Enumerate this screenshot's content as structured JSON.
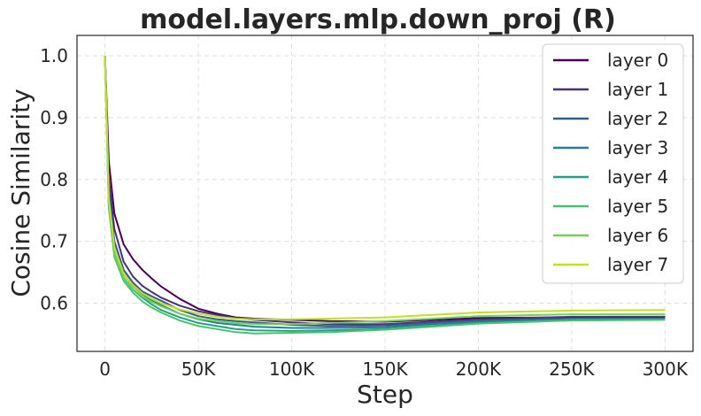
{
  "chart_data": {
    "type": "line",
    "title": "model.layers.mlp.down_proj (R)",
    "xlabel": "Step",
    "ylabel": "Cosine Similarity",
    "xlim": [
      -15000,
      315000
    ],
    "ylim": [
      0.522,
      1.033
    ],
    "xticks": [
      0,
      50000,
      100000,
      150000,
      200000,
      250000,
      300000
    ],
    "xtick_labels": [
      "0",
      "50K",
      "100K",
      "150K",
      "200K",
      "250K",
      "300K"
    ],
    "yticks": [
      0.6,
      0.7,
      0.8,
      0.9,
      1.0
    ],
    "ytick_labels": [
      "0.6",
      "0.7",
      "0.8",
      "0.9",
      "1.0"
    ],
    "grid": true,
    "legend_position": "top-right",
    "x": [
      0,
      2000,
      5000,
      10000,
      15000,
      20000,
      25000,
      30000,
      40000,
      50000,
      60000,
      70000,
      80000,
      100000,
      120000,
      150000,
      175000,
      200000,
      250000,
      300000
    ],
    "series": [
      {
        "name": "layer 0",
        "color": "#440154",
        "values": [
          1.0,
          0.83,
          0.745,
          0.695,
          0.671,
          0.654,
          0.64,
          0.627,
          0.607,
          0.591,
          0.583,
          0.577,
          0.575,
          0.573,
          0.571,
          0.57,
          0.573,
          0.576,
          0.577,
          0.577
        ]
      },
      {
        "name": "layer 1",
        "color": "#46327e",
        "values": [
          1.0,
          0.8,
          0.72,
          0.667,
          0.643,
          0.628,
          0.618,
          0.609,
          0.596,
          0.587,
          0.581,
          0.576,
          0.573,
          0.569,
          0.566,
          0.566,
          0.57,
          0.574,
          0.578,
          0.578
        ]
      },
      {
        "name": "layer 2",
        "color": "#365c8d",
        "values": [
          1.0,
          0.78,
          0.7,
          0.654,
          0.633,
          0.619,
          0.611,
          0.604,
          0.589,
          0.579,
          0.574,
          0.571,
          0.569,
          0.565,
          0.563,
          0.564,
          0.568,
          0.572,
          0.575,
          0.575
        ]
      },
      {
        "name": "layer 3",
        "color": "#277f8e",
        "values": [
          1.0,
          0.77,
          0.69,
          0.648,
          0.628,
          0.615,
          0.605,
          0.597,
          0.583,
          0.574,
          0.568,
          0.565,
          0.562,
          0.56,
          0.56,
          0.561,
          0.566,
          0.57,
          0.574,
          0.574
        ]
      },
      {
        "name": "layer 4",
        "color": "#1fa187",
        "values": [
          1.0,
          0.76,
          0.68,
          0.641,
          0.622,
          0.609,
          0.598,
          0.589,
          0.577,
          0.568,
          0.563,
          0.558,
          0.556,
          0.555,
          0.556,
          0.558,
          0.563,
          0.568,
          0.573,
          0.574
        ]
      },
      {
        "name": "layer 5",
        "color": "#4ac16d",
        "values": [
          1.0,
          0.755,
          0.675,
          0.636,
          0.617,
          0.603,
          0.593,
          0.585,
          0.572,
          0.563,
          0.558,
          0.553,
          0.551,
          0.552,
          0.553,
          0.557,
          0.562,
          0.567,
          0.572,
          0.573
        ]
      },
      {
        "name": "layer 6",
        "color": "#73d056",
        "values": [
          1.0,
          0.765,
          0.68,
          0.642,
          0.623,
          0.611,
          0.602,
          0.595,
          0.583,
          0.575,
          0.571,
          0.568,
          0.566,
          0.566,
          0.568,
          0.571,
          0.575,
          0.579,
          0.582,
          0.582
        ]
      },
      {
        "name": "layer 7",
        "color": "#c2df23",
        "values": [
          1.0,
          0.77,
          0.69,
          0.648,
          0.629,
          0.616,
          0.607,
          0.6,
          0.59,
          0.583,
          0.578,
          0.575,
          0.574,
          0.574,
          0.575,
          0.577,
          0.581,
          0.585,
          0.588,
          0.589
        ]
      }
    ]
  }
}
